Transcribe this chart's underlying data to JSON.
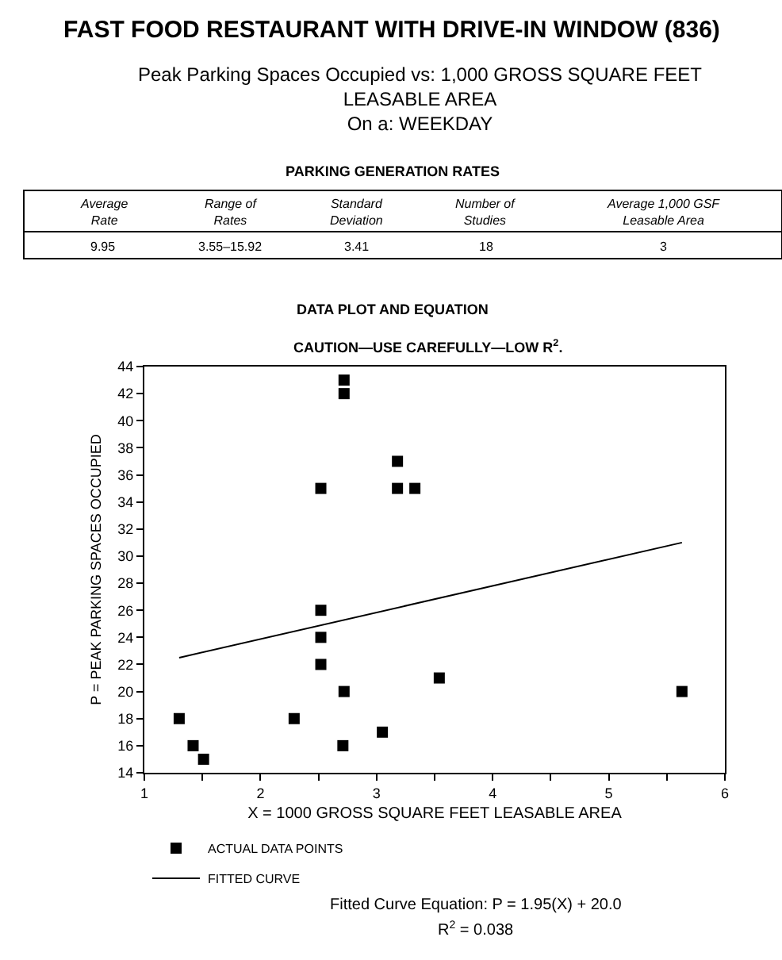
{
  "chart_data": {
    "type": "scatter",
    "title": "FAST FOOD RESTAURANT WITH DRIVE-IN WINDOW (836)",
    "subtitle": "Peak Parking Spaces Occupied vs: 1,000 GROSS SQUARE FEET\nLEASABLE AREA\nOn a: WEEKDAY",
    "xlabel": "X = 1000 GROSS SQUARE FEET LEASABLE AREA",
    "ylabel": "P = PEAK PARKING SPACES OCCUPIED",
    "annotations": [
      "PARKING GENERATION RATES",
      "Average\nRate",
      "Range of\nRates",
      "Standard\nDeviation",
      "Number of\nStudies",
      "Average 1,000 GSF\nLeasable Area",
      "9.95",
      "3.55–15.92",
      "3.41",
      "18",
      "3",
      "DATA PLOT AND EQUATION",
      "CAUTION—USE CAREFULLY—LOW R$^{2}$.",
      "Fitted Curve Equation: P = 1.95(X) + 20.0",
      "R$^{2}$ = 0.038"
    ],
    "series": [
      {
        "name": "ACTUAL DATA POINTS",
        "marker": "square",
        "color": "#000000",
        "x": [
          1.3,
          1.42,
          1.51,
          2.29,
          2.52,
          2.52,
          2.52,
          2.52,
          2.72,
          2.72,
          2.72,
          2.71,
          3.05,
          3.18,
          3.18,
          3.33,
          3.54,
          5.63
        ],
        "values": [
          18,
          16,
          15,
          18,
          35,
          26,
          24,
          22,
          43,
          42,
          20,
          16,
          17,
          37,
          35,
          35,
          21,
          20
        ]
      },
      {
        "name": "FITTED CURVE",
        "type": "line",
        "marker": "none",
        "line_style": "solid",
        "color": "#000000",
        "x": [
          1.3,
          5.63
        ],
        "values": [
          22.5,
          31.0
        ]
      }
    ],
    "xlim": [
      1,
      6
    ],
    "xticks": [
      1,
      {
        "value": 1.5,
        "label": null
      },
      2,
      {
        "value": 2.5,
        "label": null
      },
      3,
      {
        "value": 3.5,
        "label": null
      },
      4,
      {
        "value": 4.5,
        "label": null
      },
      5,
      {
        "value": 5.5,
        "label": null
      },
      6
    ],
    "ylim": [
      14,
      44
    ],
    "yticks": [
      14,
      16,
      18,
      20,
      22,
      24,
      26,
      28,
      30,
      32,
      34,
      36,
      38,
      40,
      42,
      44
    ],
    "legend": "bottom"
  }
}
